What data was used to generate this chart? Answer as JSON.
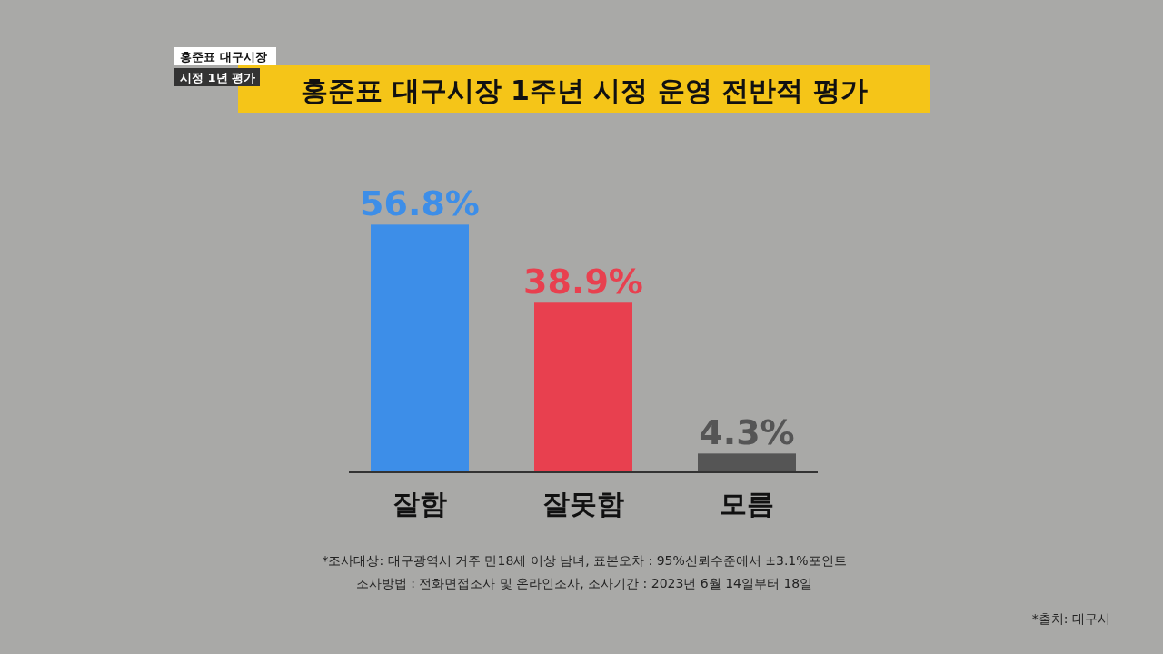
{
  "chart_data": {
    "type": "bar",
    "title": "홍준표 대구시장 1주년 시정 운영 전반적 평가",
    "categories": [
      "잘함",
      "잘못함",
      "모름"
    ],
    "values": [
      56.8,
      38.9,
      4.3
    ],
    "colors": [
      "#3d8ee8",
      "#e8404f",
      "#555555"
    ],
    "value_labels": [
      "56.8%",
      "38.9%",
      "4.3%"
    ],
    "annotations": [
      "홍준표 대구시장",
      "시정 1년 평가",
      "*조사대상: 대구광역시 거주 만18세 이상 남녀, 표본오차 : 95%신뢰수준에서 ±3.1%포인트",
      "조사방법 : 전화면접조사 및 온라인조사, 조사기간 : 2023년 6월 14일부터 18일",
      "*출처: 대구시"
    ]
  }
}
